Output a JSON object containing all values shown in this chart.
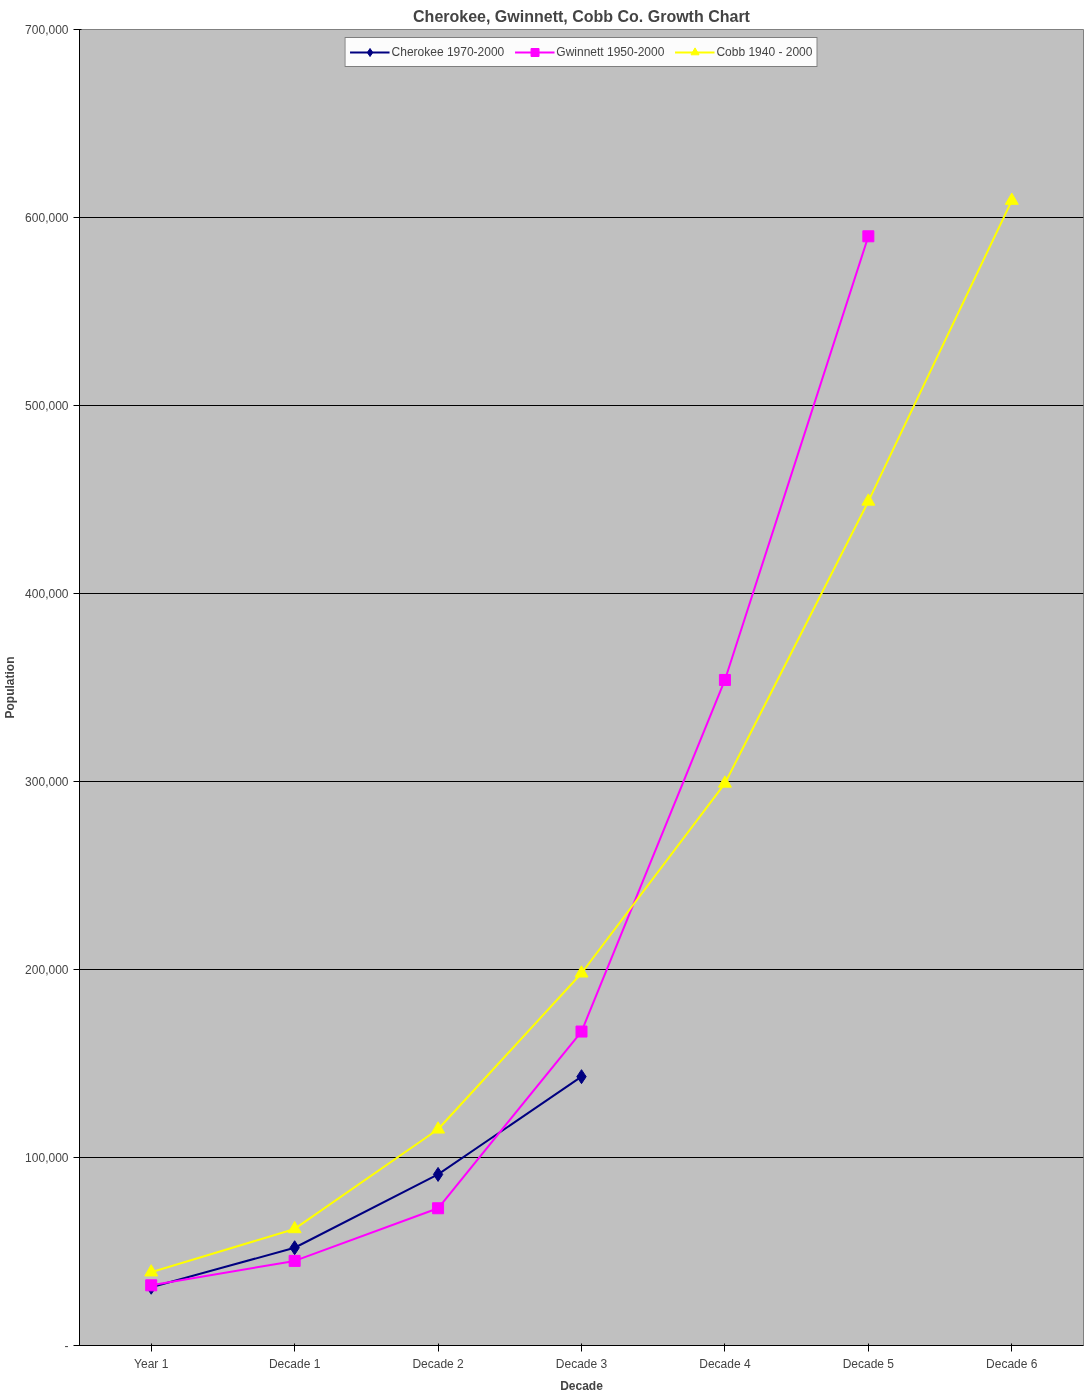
{
  "chart_data": {
    "type": "line",
    "title": "Cherokee, Gwinnett, Cobb Co. Growth Chart",
    "xlabel": "Decade",
    "ylabel": "Population",
    "categories": [
      "Year 1",
      "Decade 1",
      "Decade 2",
      "Decade 3",
      "Decade 4",
      "Decade 5",
      "Decade 6"
    ],
    "series": [
      {
        "name": "Cherokee 1970-2000",
        "color": "#000080",
        "marker": "diamond",
        "values": [
          31000,
          52000,
          91000,
          143000,
          null,
          null,
          null
        ]
      },
      {
        "name": "Gwinnett 1950-2000",
        "color": "#ff00ff",
        "marker": "square",
        "values": [
          32000,
          45000,
          73000,
          167000,
          354000,
          590000,
          null
        ]
      },
      {
        "name": "Cobb 1940 - 2000",
        "color": "#ffff00",
        "marker": "triangle",
        "values": [
          39000,
          62000,
          115000,
          198000,
          299000,
          449000,
          609000
        ]
      }
    ],
    "ylim": [
      0,
      700000
    ],
    "yticks": [
      {
        "value": 0,
        "label": "-"
      },
      {
        "value": 100000,
        "label": "100,000"
      },
      {
        "value": 200000,
        "label": "200,000"
      },
      {
        "value": 300000,
        "label": "300,000"
      },
      {
        "value": 400000,
        "label": "400,000"
      },
      {
        "value": 500000,
        "label": "500,000"
      },
      {
        "value": 600000,
        "label": "600,000"
      },
      {
        "value": 700000,
        "label": "700,000"
      }
    ],
    "grid": "y",
    "legend": "top",
    "line_style": "solid"
  }
}
